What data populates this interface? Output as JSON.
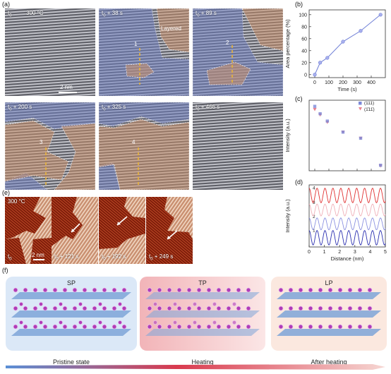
{
  "panel_labels": {
    "a": "(a)",
    "b": "(b)",
    "c": "(c)",
    "d": "(d)",
    "e": "(e)",
    "f": "(f)"
  },
  "panel_a": {
    "tiles": [
      {
        "time": "t",
        "sub": "0",
        "extra": "",
        "temp": "300 °C",
        "scale": "2 nm",
        "marker": "",
        "region": ""
      },
      {
        "time": "t",
        "sub": "0",
        "extra": " + 38 s",
        "temp": "",
        "scale": "",
        "marker": "1",
        "region": "Layered"
      },
      {
        "time": "t",
        "sub": "0",
        "extra": " + 89 s",
        "temp": "",
        "scale": "",
        "marker": "2",
        "region": ""
      },
      {
        "time": "t",
        "sub": "0",
        "extra": " + 200 s",
        "temp": "",
        "scale": "",
        "marker": "3",
        "region": ""
      },
      {
        "time": "t",
        "sub": "0",
        "extra": " + 325 s",
        "temp": "",
        "scale": "",
        "marker": "4",
        "region": ""
      },
      {
        "time": "t",
        "sub": "0",
        "extra": " + 466 s",
        "temp": "",
        "scale": "",
        "marker": "",
        "region": ""
      }
    ],
    "colors": {
      "blue": "#6f80bf",
      "orange": "#c98f6a",
      "dashed": "#e8b43a"
    }
  },
  "panel_e": {
    "tiles": [
      {
        "time": "t",
        "sub": "0",
        "extra": "",
        "temp": "300 °C",
        "scale": "2 nm"
      },
      {
        "time": "t",
        "sub": "0",
        "extra": " + 121 s",
        "temp": "",
        "scale": ""
      },
      {
        "time": "t",
        "sub": "0",
        "extra": " + 192 s",
        "temp": "",
        "scale": ""
      },
      {
        "time": "t",
        "sub": "0",
        "extra": " + 249 s",
        "temp": "",
        "scale": ""
      }
    ]
  },
  "chart_data": [
    {
      "type": "line",
      "panel": "b",
      "xlabel": "Time (s)",
      "ylabel": "Area percentage (%)",
      "x": [
        0,
        38,
        89,
        200,
        325,
        466
      ],
      "series": [
        {
          "values": [
            0,
            20,
            28,
            55,
            73,
            100
          ]
        }
      ],
      "xlim": [
        -40,
        500
      ],
      "ylim": [
        -5,
        108
      ],
      "xticks": [
        0,
        100,
        200,
        300,
        400
      ],
      "yticks": [
        0,
        20,
        40,
        60,
        80,
        100
      ],
      "color": "#6f7fd6"
    },
    {
      "type": "scatter",
      "panel": "c",
      "xlabel": "",
      "ylabel": "Intensity (a.u.)",
      "x": [
        0,
        38,
        89,
        200,
        325,
        466
      ],
      "series": [
        {
          "name": "(111)",
          "values": [
            1.0,
            0.88,
            0.76,
            0.58,
            0.48,
            0.04
          ],
          "color": "#7b88d8",
          "marker": "square"
        },
        {
          "name": "(1̄11̄)",
          "values": [
            0.95,
            0.86,
            0.74,
            0.58,
            0.48,
            0.03
          ],
          "color": "#e8808e",
          "marker": "triangle"
        }
      ],
      "xlim": [
        -40,
        500
      ],
      "ylim": [
        -0.05,
        1.1
      ],
      "xticks": [
        0,
        100,
        200,
        300,
        400
      ],
      "xtick_labels_visible": false
    },
    {
      "type": "line",
      "panel": "d",
      "xlabel": "Distance (nm)",
      "ylabel": "Intensity (a.u.)",
      "xlim": [
        0,
        5
      ],
      "xticks": [
        0,
        1,
        2,
        3,
        4,
        5
      ],
      "series": [
        {
          "name": "1",
          "color": "#2a2fb0",
          "amplitude": 0.55,
          "offset": 0.0,
          "period": 0.52
        },
        {
          "name": "2",
          "color": "#8a90e0",
          "amplitude": 0.45,
          "offset": 1.05,
          "period": 0.52
        },
        {
          "name": "3",
          "color": "#f0b0b8",
          "amplitude": 0.45,
          "offset": 2.1,
          "period": 0.52
        },
        {
          "name": "4",
          "color": "#e03030",
          "amplitude": 0.55,
          "offset": 3.2,
          "period": 0.52
        }
      ]
    }
  ],
  "panel_f": {
    "stages": [
      {
        "title": "SP",
        "caption": "Pristine state",
        "bg": "#dbe8f7"
      },
      {
        "title": "TP",
        "caption": "Heating",
        "bg": "#f3c9cc"
      },
      {
        "title": "LP",
        "caption": "After heating",
        "bg": "#fbe8df"
      }
    ],
    "atom_color": "#b03cb8",
    "slab_color": "#7ea5d8"
  }
}
